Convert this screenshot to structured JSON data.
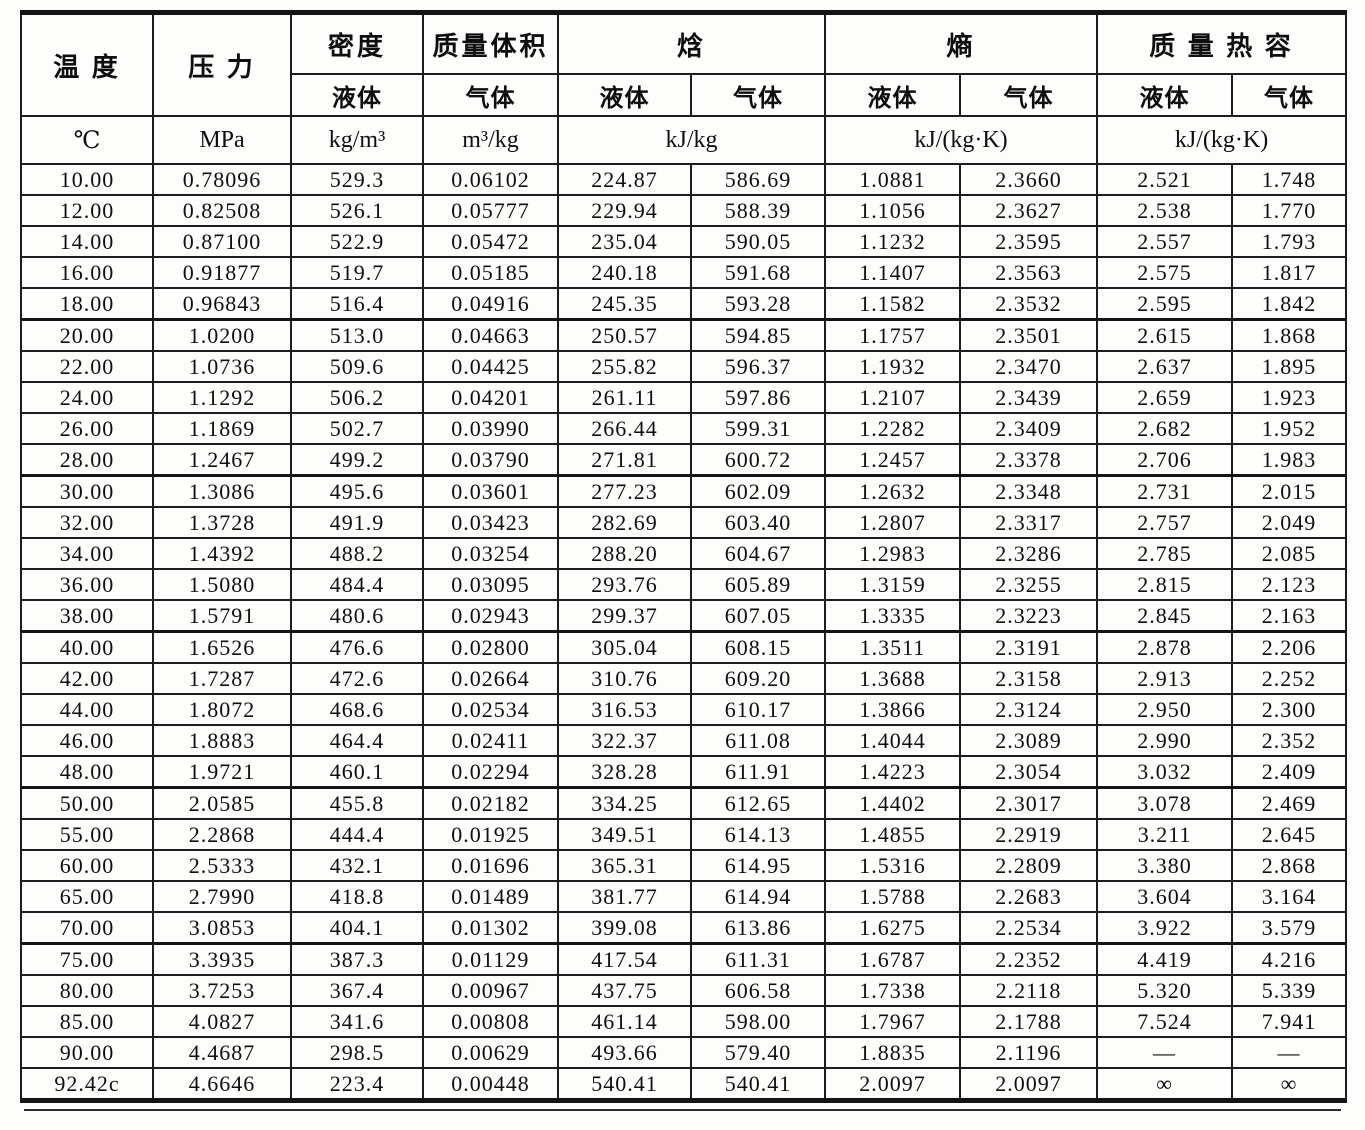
{
  "table": {
    "header": {
      "temp": "温  度",
      "pressure": "压  力",
      "density": "密度",
      "specific_volume": "质量体积",
      "enthalpy": "焓",
      "entropy": "熵",
      "heat_capacity": "质 量 热 容",
      "liquid": "液体",
      "gas": "气体"
    },
    "units": {
      "temp": "℃",
      "pressure": "MPa",
      "density": "kg/m³",
      "specific_volume": "m³/kg",
      "enthalpy": "kJ/kg",
      "entropy": "kJ/(kg·K)",
      "heat_capacity": "kJ/(kg·K)"
    },
    "groups": [
      [
        [
          "10.00",
          "0.78096",
          "529.3",
          "0.06102",
          "224.87",
          "586.69",
          "1.0881",
          "2.3660",
          "2.521",
          "1.748"
        ],
        [
          "12.00",
          "0.82508",
          "526.1",
          "0.05777",
          "229.94",
          "588.39",
          "1.1056",
          "2.3627",
          "2.538",
          "1.770"
        ],
        [
          "14.00",
          "0.87100",
          "522.9",
          "0.05472",
          "235.04",
          "590.05",
          "1.1232",
          "2.3595",
          "2.557",
          "1.793"
        ],
        [
          "16.00",
          "0.91877",
          "519.7",
          "0.05185",
          "240.18",
          "591.68",
          "1.1407",
          "2.3563",
          "2.575",
          "1.817"
        ],
        [
          "18.00",
          "0.96843",
          "516.4",
          "0.04916",
          "245.35",
          "593.28",
          "1.1582",
          "2.3532",
          "2.595",
          "1.842"
        ]
      ],
      [
        [
          "20.00",
          "1.0200",
          "513.0",
          "0.04663",
          "250.57",
          "594.85",
          "1.1757",
          "2.3501",
          "2.615",
          "1.868"
        ],
        [
          "22.00",
          "1.0736",
          "509.6",
          "0.04425",
          "255.82",
          "596.37",
          "1.1932",
          "2.3470",
          "2.637",
          "1.895"
        ],
        [
          "24.00",
          "1.1292",
          "506.2",
          "0.04201",
          "261.11",
          "597.86",
          "1.2107",
          "2.3439",
          "2.659",
          "1.923"
        ],
        [
          "26.00",
          "1.1869",
          "502.7",
          "0.03990",
          "266.44",
          "599.31",
          "1.2282",
          "2.3409",
          "2.682",
          "1.952"
        ],
        [
          "28.00",
          "1.2467",
          "499.2",
          "0.03790",
          "271.81",
          "600.72",
          "1.2457",
          "2.3378",
          "2.706",
          "1.983"
        ]
      ],
      [
        [
          "30.00",
          "1.3086",
          "495.6",
          "0.03601",
          "277.23",
          "602.09",
          "1.2632",
          "2.3348",
          "2.731",
          "2.015"
        ],
        [
          "32.00",
          "1.3728",
          "491.9",
          "0.03423",
          "282.69",
          "603.40",
          "1.2807",
          "2.3317",
          "2.757",
          "2.049"
        ],
        [
          "34.00",
          "1.4392",
          "488.2",
          "0.03254",
          "288.20",
          "604.67",
          "1.2983",
          "2.3286",
          "2.785",
          "2.085"
        ],
        [
          "36.00",
          "1.5080",
          "484.4",
          "0.03095",
          "293.76",
          "605.89",
          "1.3159",
          "2.3255",
          "2.815",
          "2.123"
        ],
        [
          "38.00",
          "1.5791",
          "480.6",
          "0.02943",
          "299.37",
          "607.05",
          "1.3335",
          "2.3223",
          "2.845",
          "2.163"
        ]
      ],
      [
        [
          "40.00",
          "1.6526",
          "476.6",
          "0.02800",
          "305.04",
          "608.15",
          "1.3511",
          "2.3191",
          "2.878",
          "2.206"
        ],
        [
          "42.00",
          "1.7287",
          "472.6",
          "0.02664",
          "310.76",
          "609.20",
          "1.3688",
          "2.3158",
          "2.913",
          "2.252"
        ],
        [
          "44.00",
          "1.8072",
          "468.6",
          "0.02534",
          "316.53",
          "610.17",
          "1.3866",
          "2.3124",
          "2.950",
          "2.300"
        ],
        [
          "46.00",
          "1.8883",
          "464.4",
          "0.02411",
          "322.37",
          "611.08",
          "1.4044",
          "2.3089",
          "2.990",
          "2.352"
        ],
        [
          "48.00",
          "1.9721",
          "460.1",
          "0.02294",
          "328.28",
          "611.91",
          "1.4223",
          "2.3054",
          "3.032",
          "2.409"
        ]
      ],
      [
        [
          "50.00",
          "2.0585",
          "455.8",
          "0.02182",
          "334.25",
          "612.65",
          "1.4402",
          "2.3017",
          "3.078",
          "2.469"
        ],
        [
          "55.00",
          "2.2868",
          "444.4",
          "0.01925",
          "349.51",
          "614.13",
          "1.4855",
          "2.2919",
          "3.211",
          "2.645"
        ],
        [
          "60.00",
          "2.5333",
          "432.1",
          "0.01696",
          "365.31",
          "614.95",
          "1.5316",
          "2.2809",
          "3.380",
          "2.868"
        ],
        [
          "65.00",
          "2.7990",
          "418.8",
          "0.01489",
          "381.77",
          "614.94",
          "1.5788",
          "2.2683",
          "3.604",
          "3.164"
        ],
        [
          "70.00",
          "3.0853",
          "404.1",
          "0.01302",
          "399.08",
          "613.86",
          "1.6275",
          "2.2534",
          "3.922",
          "3.579"
        ]
      ],
      [
        [
          "75.00",
          "3.3935",
          "387.3",
          "0.01129",
          "417.54",
          "611.31",
          "1.6787",
          "2.2352",
          "4.419",
          "4.216"
        ],
        [
          "80.00",
          "3.7253",
          "367.4",
          "0.00967",
          "437.75",
          "606.58",
          "1.7338",
          "2.2118",
          "5.320",
          "5.339"
        ],
        [
          "85.00",
          "4.0827",
          "341.6",
          "0.00808",
          "461.14",
          "598.00",
          "1.7967",
          "2.1788",
          "7.524",
          "7.941"
        ],
        [
          "90.00",
          "4.4687",
          "298.5",
          "0.00629",
          "493.66",
          "579.40",
          "1.8835",
          "2.1196",
          "—",
          "—"
        ],
        [
          "92.42c",
          "4.6646",
          "223.4",
          "0.00448",
          "540.41",
          "540.41",
          "2.0097",
          "2.0097",
          "∞",
          "∞"
        ]
      ]
    ]
  }
}
